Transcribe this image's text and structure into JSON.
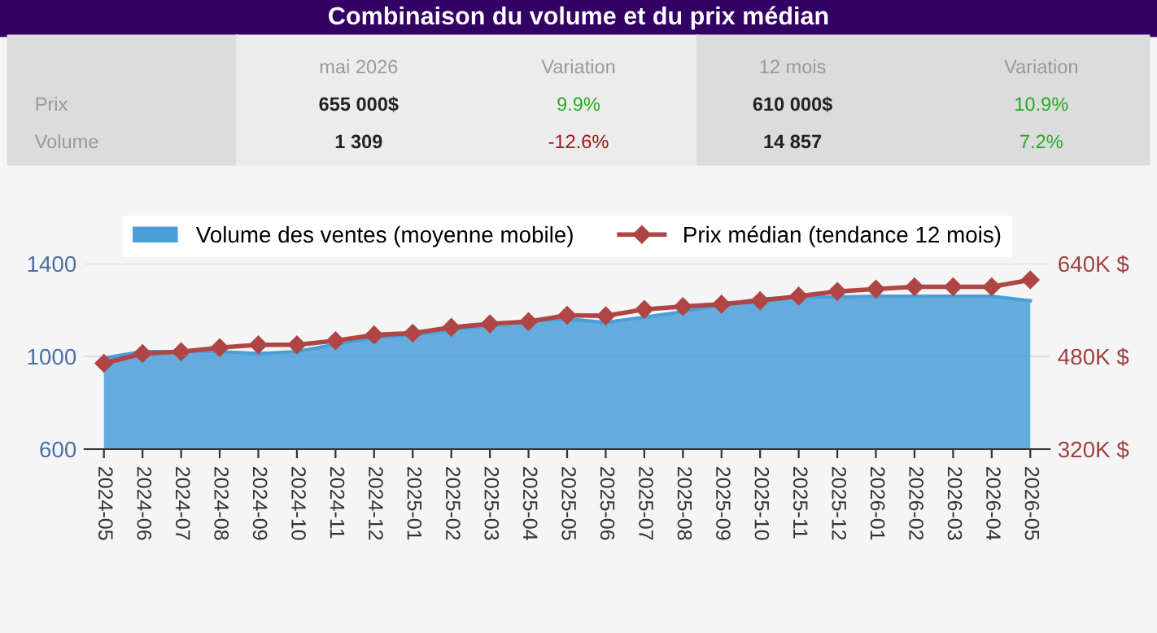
{
  "chart_data": {
    "type": "area",
    "title": "Combinaison du volume et du prix médian",
    "categories": [
      "2024-05",
      "2024-06",
      "2024-07",
      "2024-08",
      "2024-09",
      "2024-10",
      "2024-11",
      "2024-12",
      "2025-01",
      "2025-02",
      "2025-03",
      "2025-04",
      "2025-05",
      "2025-06",
      "2025-07",
      "2025-08",
      "2025-09",
      "2025-10",
      "2025-11",
      "2025-12",
      "2026-01",
      "2026-02",
      "2026-03",
      "2026-04",
      "2026-05"
    ],
    "series": [
      {
        "name": "Volume des ventes (moyenne mobile)",
        "color": "#4a9fd8",
        "values": [
          993,
          1021,
          1021,
          1021,
          1012,
          1021,
          1052,
          1082,
          1092,
          1115,
          1134,
          1153,
          1162,
          1146,
          1169,
          1193,
          1223,
          1247,
          1256,
          1256,
          1259,
          1259,
          1259,
          1259,
          1240
        ]
      },
      {
        "name": "Prix médian (tendance 12 mois)",
        "type": "line",
        "axis": "y2",
        "color": "#b04545",
        "marker": "diamond",
        "values": [
          468000,
          485000,
          488000,
          495000,
          500000,
          500000,
          507000,
          517000,
          520000,
          530000,
          536000,
          540000,
          551000,
          550000,
          561000,
          566000,
          570000,
          576000,
          584000,
          592000,
          596000,
          600000,
          600000,
          600000,
          612000
        ]
      }
    ],
    "ylim": [
      600,
      1400
    ],
    "yticks": [
      600,
      1000,
      1400
    ],
    "y2lim": [
      320000,
      640000
    ],
    "y2ticks": [
      {
        "value": 320000,
        "label": "320K $"
      },
      {
        "value": 480000,
        "label": "480K $"
      },
      {
        "value": 640000,
        "label": "640K $"
      }
    ],
    "grid": "y",
    "legend": "top",
    "annotations": [
      "mai 2026",
      "Variation",
      "12 mois",
      "Variation",
      "Prix",
      "655 000$",
      "9.9%",
      "610 000$",
      "10.9%",
      "Volume",
      "1 309",
      "-12.6%",
      "14 857",
      "7.2%"
    ]
  }
}
